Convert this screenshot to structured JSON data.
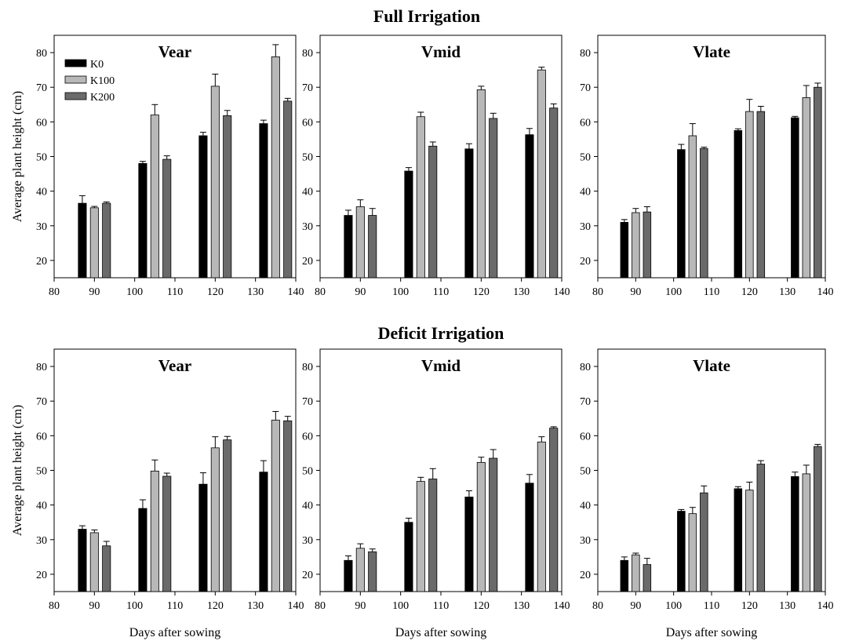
{
  "row_titles": [
    "Full Irrigation",
    "Deficit Irrigation"
  ],
  "legend": [
    {
      "name": "K0",
      "color": "#000000"
    },
    {
      "name": "K100",
      "color": "#b8b8b8"
    },
    {
      "name": "K200",
      "color": "#6a6a6a"
    }
  ],
  "chart_data": [
    {
      "type": "bar",
      "panel": "full-vear",
      "row": 0,
      "col": 0,
      "title": "Vear",
      "ylabel": "Average plant height (cm)",
      "xlabel": "",
      "xlim": [
        80,
        140
      ],
      "ylim": [
        15,
        85
      ],
      "xticks": [
        80,
        90,
        100,
        110,
        120,
        130,
        140
      ],
      "yticks": [
        20,
        30,
        40,
        50,
        60,
        70,
        80
      ],
      "x": [
        90,
        105,
        120,
        135
      ],
      "legend": true,
      "series": [
        {
          "name": "K0",
          "values": [
            36.5,
            48,
            56,
            59.5
          ],
          "errors": [
            2.2,
            0.6,
            1.0,
            1.0
          ]
        },
        {
          "name": "K100",
          "values": [
            35.2,
            62,
            70.3,
            78.8
          ],
          "errors": [
            0.4,
            3.0,
            3.5,
            3.5
          ]
        },
        {
          "name": "K200",
          "values": [
            36.5,
            49.2,
            61.8,
            66
          ],
          "errors": [
            0.4,
            1.0,
            1.5,
            0.8
          ]
        }
      ]
    },
    {
      "type": "bar",
      "panel": "full-vmid",
      "row": 0,
      "col": 1,
      "title": "Vmid",
      "ylabel": "",
      "xlabel": "",
      "xlim": [
        80,
        140
      ],
      "ylim": [
        15,
        85
      ],
      "xticks": [
        80,
        90,
        100,
        110,
        120,
        130,
        140
      ],
      "yticks": [
        20,
        30,
        40,
        50,
        60,
        70,
        80
      ],
      "x": [
        90,
        105,
        120,
        135
      ],
      "legend": false,
      "series": [
        {
          "name": "K0",
          "values": [
            33,
            45.8,
            52.2,
            56.3
          ],
          "errors": [
            1.5,
            1.0,
            1.5,
            1.8
          ]
        },
        {
          "name": "K100",
          "values": [
            35.5,
            61.5,
            69.3,
            75
          ],
          "errors": [
            2.0,
            1.3,
            1.0,
            0.8
          ]
        },
        {
          "name": "K200",
          "values": [
            33,
            53,
            61,
            64
          ],
          "errors": [
            2.0,
            1.2,
            1.5,
            1.2
          ]
        }
      ]
    },
    {
      "type": "bar",
      "panel": "full-vlate",
      "row": 0,
      "col": 2,
      "title": "Vlate",
      "ylabel": "",
      "xlabel": "",
      "xlim": [
        80,
        140
      ],
      "ylim": [
        15,
        85
      ],
      "xticks": [
        80,
        90,
        100,
        110,
        120,
        130,
        140
      ],
      "yticks": [
        20,
        30,
        40,
        50,
        60,
        70,
        80
      ],
      "x": [
        90,
        105,
        120,
        135
      ],
      "legend": false,
      "series": [
        {
          "name": "K0",
          "values": [
            31,
            52,
            57.5,
            61.2
          ],
          "errors": [
            0.8,
            1.5,
            0.5,
            0.4
          ]
        },
        {
          "name": "K100",
          "values": [
            33.8,
            56,
            63,
            67
          ],
          "errors": [
            1.2,
            3.5,
            3.5,
            3.5
          ]
        },
        {
          "name": "K200",
          "values": [
            34,
            52.3,
            63,
            70
          ],
          "errors": [
            1.5,
            0.4,
            1.5,
            1.2
          ]
        }
      ]
    },
    {
      "type": "bar",
      "panel": "deficit-vear",
      "row": 1,
      "col": 0,
      "title": "Vear",
      "ylabel": "Average plant height (cm)",
      "xlabel": "Days after sowing",
      "xlim": [
        80,
        140
      ],
      "ylim": [
        15,
        85
      ],
      "xticks": [
        80,
        90,
        100,
        110,
        120,
        130,
        140
      ],
      "yticks": [
        20,
        30,
        40,
        50,
        60,
        70,
        80
      ],
      "x": [
        90,
        105,
        120,
        135
      ],
      "legend": false,
      "series": [
        {
          "name": "K0",
          "values": [
            33,
            39,
            46,
            49.5
          ],
          "errors": [
            1.0,
            2.5,
            3.3,
            3.3
          ]
        },
        {
          "name": "K100",
          "values": [
            32,
            49.8,
            56.5,
            64.5
          ],
          "errors": [
            0.8,
            3.2,
            3.2,
            2.5
          ]
        },
        {
          "name": "K200",
          "values": [
            28.2,
            48.3,
            58.8,
            64.3
          ],
          "errors": [
            1.3,
            0.9,
            1.0,
            1.3
          ]
        }
      ]
    },
    {
      "type": "bar",
      "panel": "deficit-vmid",
      "row": 1,
      "col": 1,
      "title": "Vmid",
      "ylabel": "",
      "xlabel": "Days after sowing",
      "xlim": [
        80,
        140
      ],
      "ylim": [
        15,
        85
      ],
      "xticks": [
        80,
        90,
        100,
        110,
        120,
        130,
        140
      ],
      "yticks": [
        20,
        30,
        40,
        50,
        60,
        70,
        80
      ],
      "x": [
        90,
        105,
        120,
        135
      ],
      "legend": false,
      "series": [
        {
          "name": "K0",
          "values": [
            24,
            35,
            42.3,
            46.3
          ],
          "errors": [
            1.3,
            1.2,
            1.8,
            2.5
          ]
        },
        {
          "name": "K100",
          "values": [
            27.5,
            46.8,
            52.3,
            58.2
          ],
          "errors": [
            1.3,
            1.2,
            1.5,
            1.5
          ]
        },
        {
          "name": "K200",
          "values": [
            26.5,
            47.5,
            53.5,
            62.2
          ],
          "errors": [
            0.8,
            3.0,
            2.5,
            0.4
          ]
        }
      ]
    },
    {
      "type": "bar",
      "panel": "deficit-vlate",
      "row": 1,
      "col": 2,
      "title": "Vlate",
      "ylabel": "",
      "xlabel": "Days after sowing",
      "xlim": [
        80,
        140
      ],
      "ylim": [
        15,
        85
      ],
      "xticks": [
        80,
        90,
        100,
        110,
        120,
        130,
        140
      ],
      "yticks": [
        20,
        30,
        40,
        50,
        60,
        70,
        80
      ],
      "x": [
        90,
        105,
        120,
        135
      ],
      "legend": false,
      "series": [
        {
          "name": "K0",
          "values": [
            24,
            38.2,
            44.7,
            48.2
          ],
          "errors": [
            1.0,
            0.5,
            0.6,
            1.3
          ]
        },
        {
          "name": "K100",
          "values": [
            25.6,
            37.5,
            44.3,
            49
          ],
          "errors": [
            0.5,
            1.8,
            2.3,
            2.5
          ]
        },
        {
          "name": "K200",
          "values": [
            22.8,
            43.5,
            51.8,
            56.9
          ],
          "errors": [
            1.8,
            2.0,
            1.0,
            0.6
          ]
        }
      ]
    }
  ]
}
